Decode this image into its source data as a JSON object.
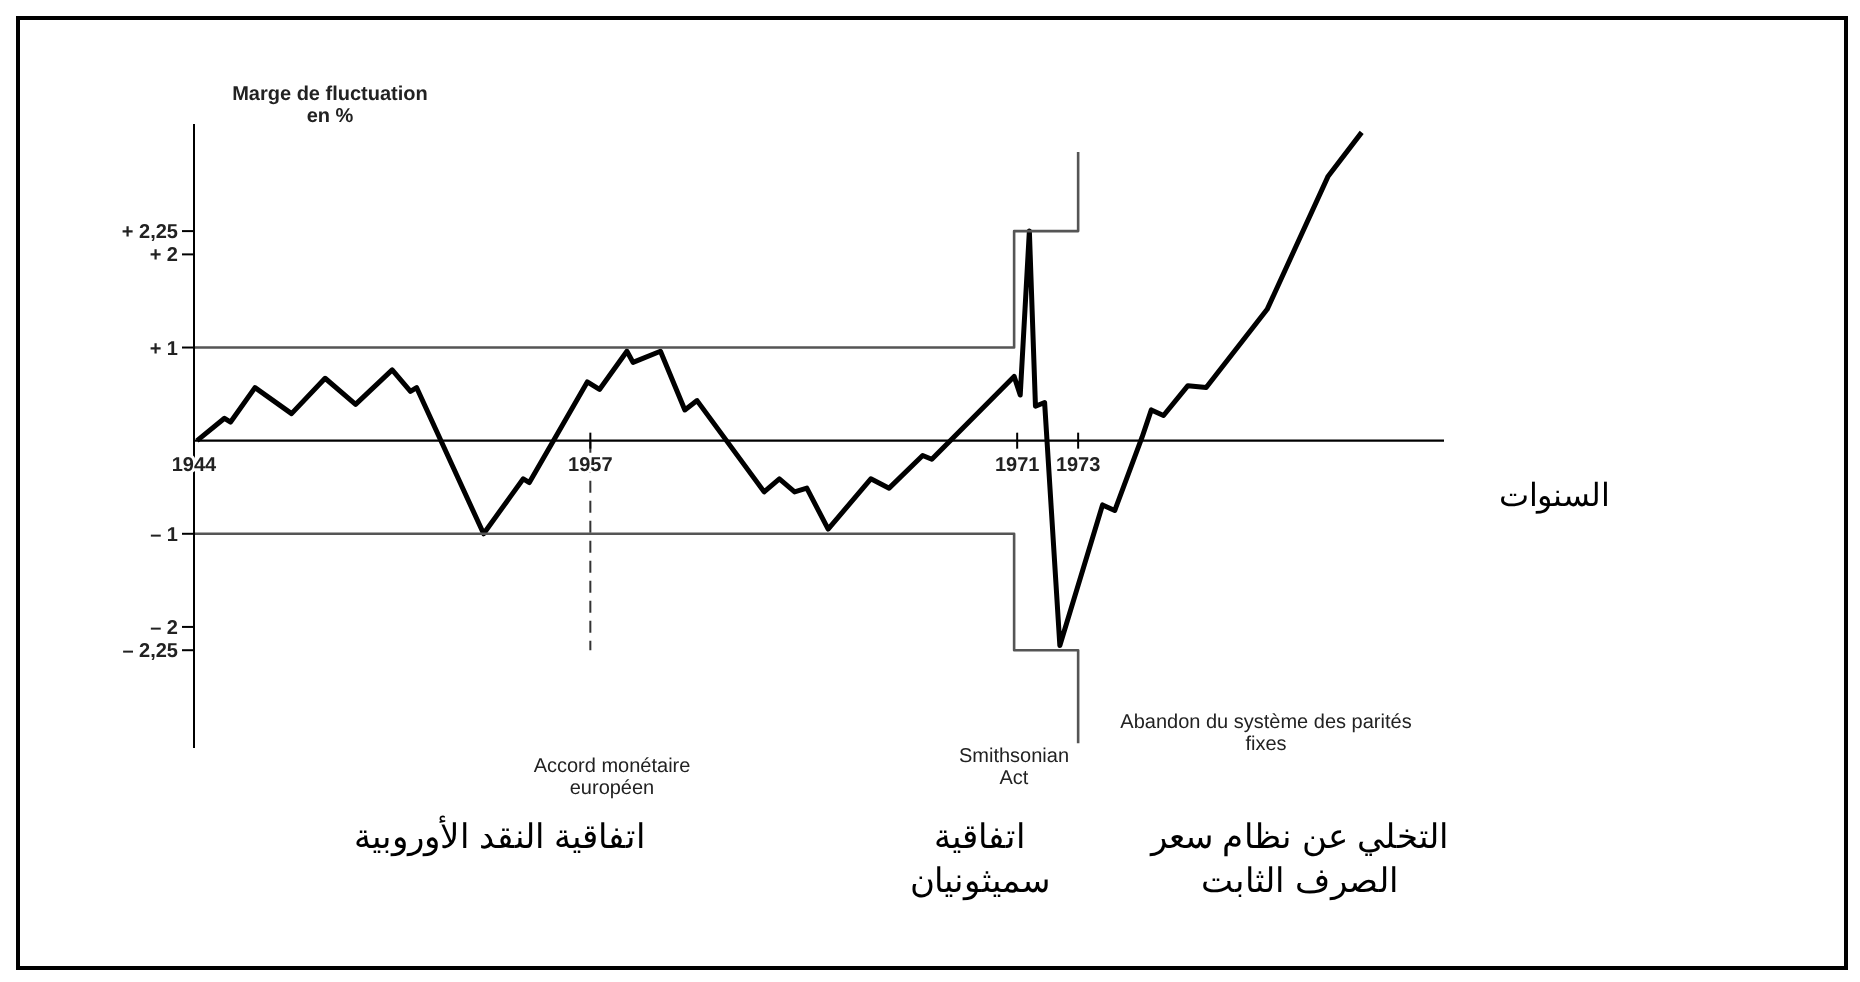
{
  "chart_data": {
    "type": "line",
    "ylabel": "Marge de fluctuation en %",
    "xlabel": "السنوات",
    "xlim": [
      1944,
      1985
    ],
    "xticks": [
      1944,
      1957,
      1971,
      1973
    ],
    "ylim": [
      -3.3,
      3.4
    ],
    "yticks": [
      {
        "value": 2.25,
        "label": "+ 2,25"
      },
      {
        "value": 2,
        "label": "+ 2"
      },
      {
        "value": 1,
        "label": "+ 1"
      },
      {
        "value": -1,
        "label": "– 1"
      },
      {
        "value": -2,
        "label": "– 2"
      },
      {
        "value": -2.25,
        "label": "– 2,25"
      }
    ],
    "marker": "none",
    "line_style": "solid",
    "series": [
      {
        "color": "#000000",
        "x": [
          1944.1,
          1945,
          1945.2,
          1946,
          1947.2,
          1948.3,
          1949.3,
          1950.5,
          1951.1,
          1951.3,
          1953.5,
          1954.4,
          1954.8,
          1955,
          1956.9,
          1957.3,
          1958.2,
          1958.4,
          1959.3,
          1960.1,
          1960.5,
          1962.7,
          1963.2,
          1963.7,
          1964.1,
          1964.8,
          1966.2,
          1966.8,
          1967.9,
          1968.2,
          1970.9,
          1971.1,
          1971.4,
          1971.6,
          1971.9,
          1972.4,
          1973.8,
          1974.2,
          1975.1,
          1975.4,
          1975.8,
          1976.6,
          1977.2,
          1979.2,
          1981.2,
          1982.3
        ],
        "values": [
          0,
          0.24,
          0.2,
          0.57,
          0.29,
          0.67,
          0.39,
          0.76,
          0.53,
          0.57,
          -1,
          -0.59,
          -0.41,
          -0.45,
          0.63,
          0.55,
          0.96,
          0.84,
          0.96,
          0.33,
          0.43,
          -0.55,
          -0.41,
          -0.55,
          -0.51,
          -0.95,
          -0.41,
          -0.51,
          -0.16,
          -0.2,
          0.69,
          0.49,
          2.25,
          0.37,
          0.41,
          -2.2,
          -0.69,
          -0.75,
          0.04,
          0.33,
          0.27,
          0.59,
          0.57,
          1.41,
          2.84,
          3.31
        ]
      },
      {
        "color": "#555555",
        "x": [
          1944,
          1970.9,
          1970.9,
          1973,
          1973
        ],
        "values": [
          1,
          1,
          2.25,
          2.25,
          3.1
        ]
      },
      {
        "color": "#555555",
        "x": [
          1944,
          1970.9,
          1970.9,
          1973,
          1973
        ],
        "values": [
          -1,
          -1,
          -2.25,
          -2.25,
          -3.25
        ]
      }
    ],
    "ref_lines": [
      {
        "axis": "x",
        "value": 1957,
        "label": "Accord monétaire européen",
        "color": "#333333",
        "line_style": "dashed"
      }
    ],
    "annotations": [
      "Smithsonian Act",
      "Abandon du système des parités fixes",
      "اتفاقية النقد الأوروبية",
      "اتفاقية سميثونيان",
      "التخلي عن نظام سعر الصرف الثابت"
    ]
  }
}
